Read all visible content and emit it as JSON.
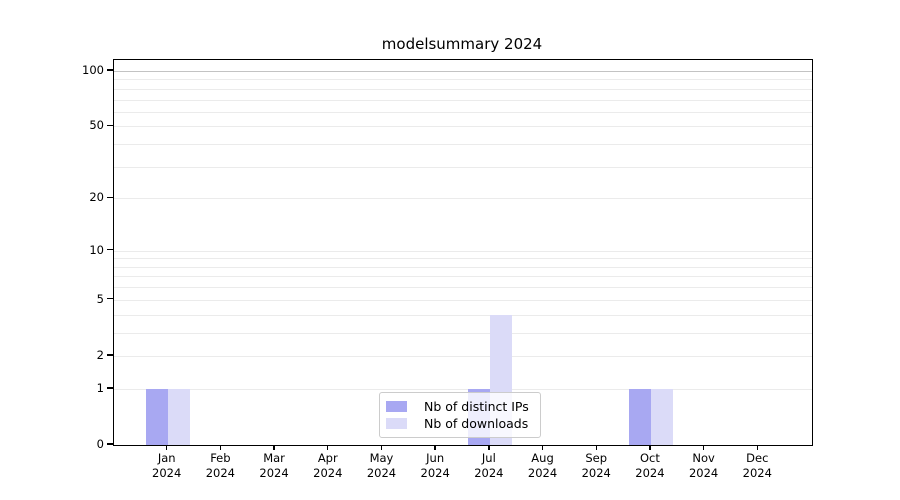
{
  "title": "modelsummary 2024",
  "colors": {
    "bar_distinct_ips": "#a8a8f2",
    "bar_downloads": "#dbdbf8",
    "grid": "#ebebeb",
    "grid_emphasized": "#c3c3c3",
    "axis": "#000000",
    "legend_border": "#cccccc"
  },
  "chart_data": {
    "type": "bar",
    "title": "modelsummary 2024",
    "categories": [
      "Jan 2024",
      "Feb 2024",
      "Mar 2024",
      "Apr 2024",
      "May 2024",
      "Jun 2024",
      "Jul 2024",
      "Aug 2024",
      "Sep 2024",
      "Oct 2024",
      "Nov 2024",
      "Dec 2024"
    ],
    "series": [
      {
        "name": "Nb of distinct IPs",
        "color": "#a8a8f2",
        "values": [
          1,
          0,
          0,
          0,
          0,
          0,
          1,
          0,
          0,
          1,
          0,
          0
        ]
      },
      {
        "name": "Nb of downloads",
        "color": "#dbdbf8",
        "values": [
          1,
          0,
          0,
          0,
          0,
          0,
          4,
          0,
          0,
          1,
          0,
          0
        ]
      }
    ],
    "xlabel": "",
    "ylabel": "",
    "yscale": "log1p (position proportional to log10(1+y))",
    "yticks": [
      0,
      1,
      2,
      5,
      10,
      20,
      50,
      100
    ],
    "gridline_values": [
      1,
      2,
      3,
      4,
      5,
      6,
      7,
      8,
      9,
      10,
      20,
      30,
      40,
      50,
      60,
      70,
      80,
      90,
      100
    ],
    "ylim": [
      0,
      115
    ],
    "grid": true,
    "legend_position": "lower center"
  }
}
